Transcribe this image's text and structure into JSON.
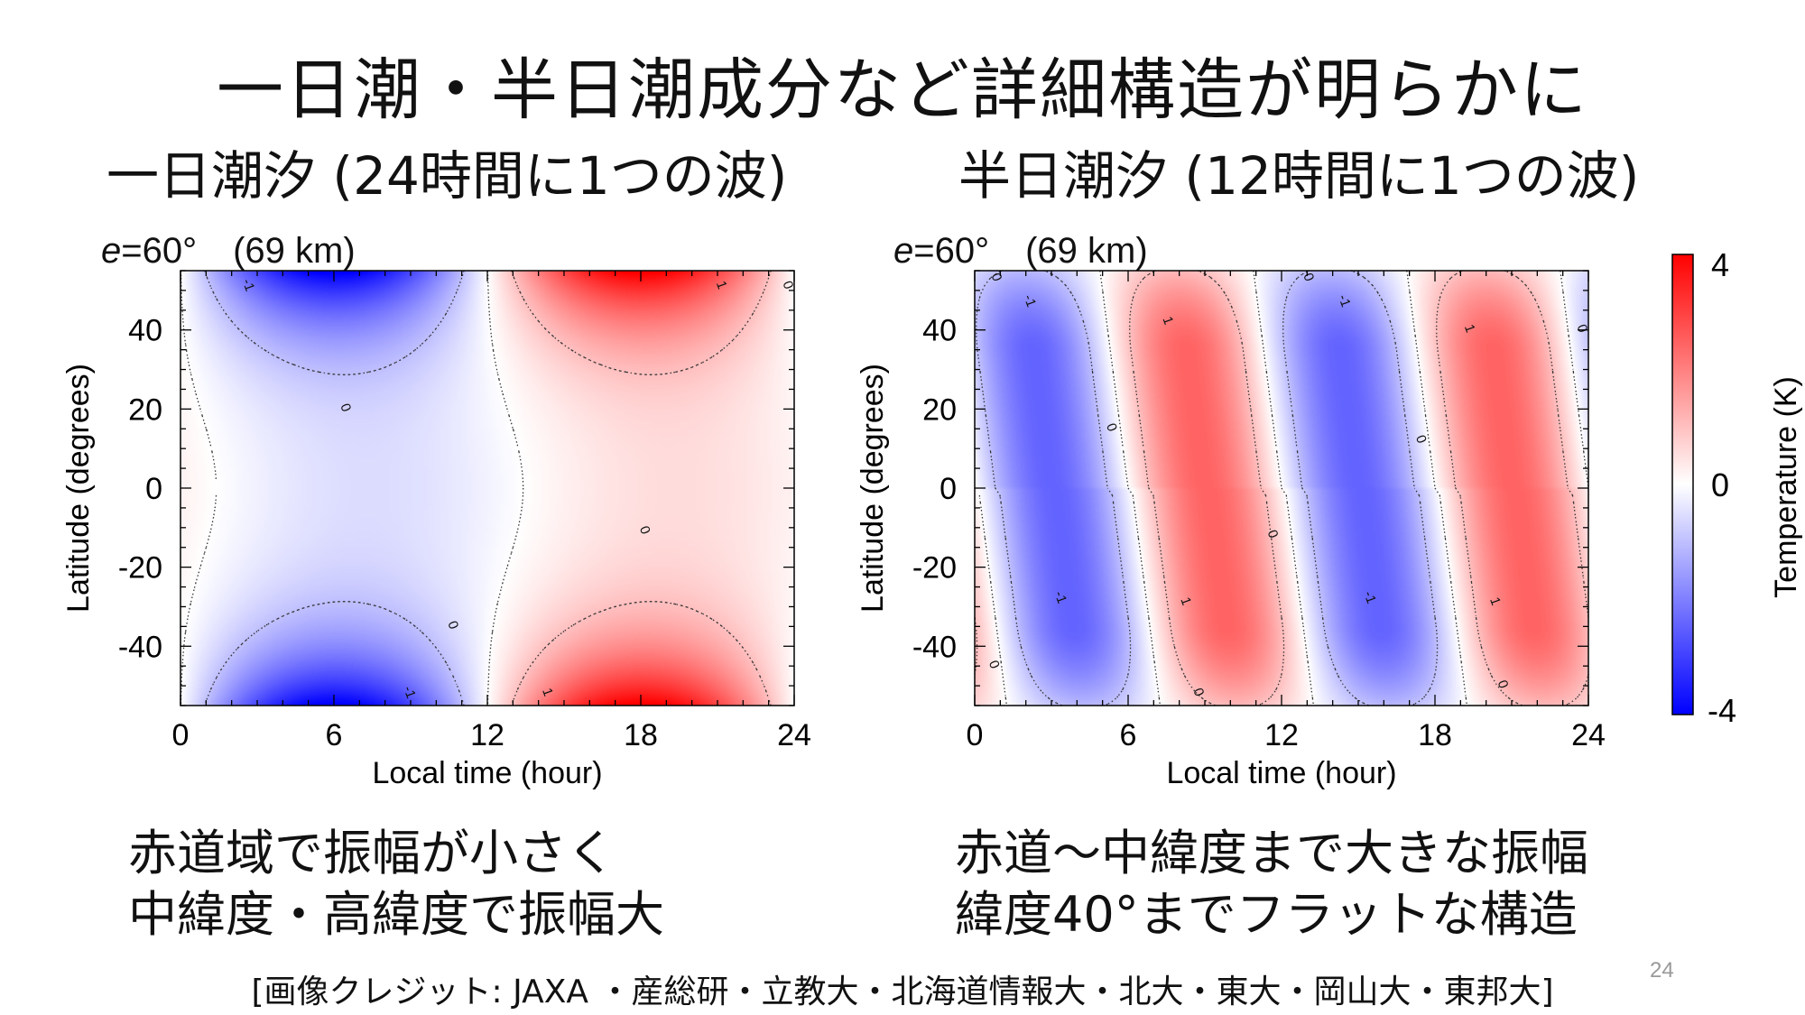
{
  "slide": {
    "title": "一日潮・半日潮成分など詳細構造が明らかに",
    "left_subtitle": "一日潮汐 (24時間に1つの波)",
    "right_subtitle": "半日潮汐 (12時間に1つの波)",
    "left_param_symbol": "e",
    "left_param_text": "=60°　(69 km)",
    "right_param_symbol": "e",
    "right_param_text": "=60°　(69 km)",
    "left_notes": [
      "赤道域で振幅が小さく",
      "中緯度・高緯度で振幅大"
    ],
    "right_notes": [
      "赤道～中緯度まで大きな振幅",
      "緯度40°までフラットな構造"
    ],
    "credit": "[画像クレジット: JAXA ・産総研・立教大・北海道情報大・北大・東大・岡山大・東邦大]",
    "page_number": "24"
  },
  "chart_data": [
    {
      "type": "heatmap",
      "title": "",
      "xlabel": "Local time (hour)",
      "ylabel": "Latitude (degrees)",
      "xlim": [
        0,
        24
      ],
      "ylim": [
        -55,
        55
      ],
      "xticks": [
        0,
        6,
        12,
        18,
        24
      ],
      "yticks": [
        -40,
        -20,
        0,
        20,
        40
      ],
      "wave": "diurnal",
      "description_values": {
        "min_center": {
          "x": 6,
          "y": 55,
          "value": -4
        },
        "min_center_south": {
          "x": 6,
          "y": -55,
          "value": -4
        },
        "max_center": {
          "x": 18,
          "y": 55,
          "value": 4
        },
        "max_center_south": {
          "x": 18,
          "y": -55,
          "value": 4
        }
      },
      "contour_levels": [
        -1,
        0,
        1
      ],
      "contour_labels": [
        {
          "text": "-1",
          "x": 2.5,
          "y": 51
        },
        {
          "text": "1",
          "x": 21,
          "y": 51
        },
        {
          "text": "0",
          "x": 23.6,
          "y": 51
        },
        {
          "text": "0",
          "x": 6.3,
          "y": 20
        },
        {
          "text": "0",
          "x": 18,
          "y": -11
        },
        {
          "text": "0",
          "x": 10.5,
          "y": -35
        },
        {
          "text": "-1",
          "x": 8.8,
          "y": -52
        },
        {
          "text": "1",
          "x": 14.2,
          "y": -52
        }
      ]
    },
    {
      "type": "heatmap",
      "title": "",
      "xlabel": "Local time (hour)",
      "ylabel": "Latitude (degrees)",
      "xlim": [
        0,
        24
      ],
      "ylim": [
        -55,
        55
      ],
      "xticks": [
        0,
        6,
        12,
        18,
        24
      ],
      "yticks": [
        -40,
        -20,
        0,
        20,
        40
      ],
      "wave": "semidiurnal",
      "description_values": {
        "min_centers_hour": [
          3,
          15
        ],
        "max_centers_hour": [
          9,
          21
        ],
        "amplitude_K": 2.5
      },
      "contour_levels": [
        -1,
        0,
        1
      ],
      "contour_labels": [
        {
          "text": "0",
          "x": 0.7,
          "y": 53
        },
        {
          "text": "-1",
          "x": 2,
          "y": 47
        },
        {
          "text": "1",
          "x": 7.4,
          "y": 42
        },
        {
          "text": "0",
          "x": 12.9,
          "y": 53
        },
        {
          "text": "-1",
          "x": 14.3,
          "y": 47
        },
        {
          "text": "1",
          "x": 19.2,
          "y": 40
        },
        {
          "text": "0",
          "x": 23.6,
          "y": 40
        },
        {
          "text": "0",
          "x": 5.2,
          "y": 15
        },
        {
          "text": "0",
          "x": 17.3,
          "y": 12
        },
        {
          "text": "0",
          "x": 11.5,
          "y": -12
        },
        {
          "text": "-1",
          "x": 3.2,
          "y": -28
        },
        {
          "text": "1",
          "x": 8.1,
          "y": -29
        },
        {
          "text": "-1",
          "x": 15.3,
          "y": -28
        },
        {
          "text": "1",
          "x": 20.2,
          "y": -29
        },
        {
          "text": "0",
          "x": 0.6,
          "y": -45
        },
        {
          "text": "0",
          "x": 8.6,
          "y": -52
        },
        {
          "text": "0",
          "x": 20.5,
          "y": -50
        }
      ]
    }
  ],
  "colorbar": {
    "label": "Temperature (K)",
    "max_label": "4",
    "mid_label": "0",
    "min_label": "-4",
    "max": 4,
    "min": -4,
    "color_max": "#ff0000",
    "color_mid": "#ffffff",
    "color_min": "#0000ff"
  }
}
